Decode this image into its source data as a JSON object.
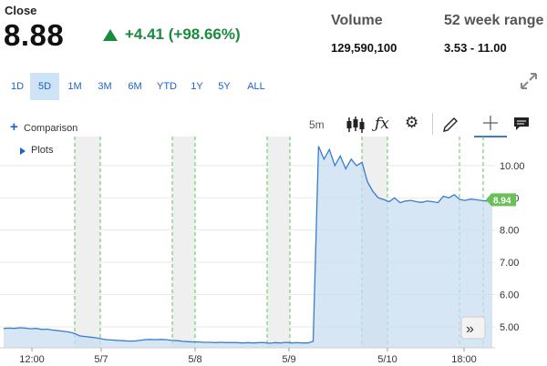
{
  "quote": {
    "close_label": "Close",
    "close_value": "8.88",
    "change": "+4.41 (+98.66%)",
    "change_color": "#1a8a3e",
    "volume_label": "Volume",
    "volume_value": "129,590,100",
    "range_label": "52 week range",
    "range_value": "3.53 - 11.00"
  },
  "range_tabs": [
    "1D",
    "5D",
    "1M",
    "3M",
    "6M",
    "YTD",
    "1Y",
    "5Y",
    "ALL"
  ],
  "active_range": "5D",
  "toolbar": {
    "comparison_label": "Comparison",
    "plots_label": "Plots",
    "interval": "5m",
    "icons": [
      "candlestick-icon",
      "fx-icon",
      "gear-icon",
      "pencil-icon",
      "crosshair-icon",
      "comment-icon",
      "expand-icon"
    ]
  },
  "chart_data": {
    "type": "area",
    "last_price_label": "8.94",
    "y_ticks": [
      "5.00",
      "6.00",
      "7.00",
      "8.00",
      "9.00",
      "10.00"
    ],
    "x_ticks": [
      "12:00",
      "5/7",
      "5/8",
      "5/9",
      "5/10",
      "18:00"
    ],
    "ylim": [
      4.35,
      10.9
    ],
    "grid": true,
    "accent_color": "#3a7dc9",
    "series": [
      {
        "values": [
          4.95,
          4.96,
          4.95,
          4.97,
          4.96,
          4.94,
          4.95,
          4.92,
          4.93,
          4.9,
          4.88,
          4.86,
          4.84,
          4.8,
          4.72,
          4.7,
          4.68,
          4.66,
          4.63,
          4.6,
          4.59,
          4.58,
          4.57,
          4.56,
          4.56,
          4.58,
          4.6,
          4.61,
          4.6,
          4.61,
          4.6,
          4.58,
          4.57,
          4.55,
          4.54,
          4.53,
          4.53,
          4.52,
          4.52,
          4.51,
          4.52,
          4.51,
          4.51,
          4.51,
          4.5,
          4.51,
          4.5,
          4.51,
          4.51,
          4.49,
          4.51,
          4.5,
          4.52,
          4.5,
          4.51,
          4.5,
          4.5,
          4.55,
          10.6,
          10.2,
          10.5,
          10.0,
          10.3,
          9.9,
          10.2,
          10.0,
          10.1,
          9.5,
          9.2,
          9.0,
          8.95,
          8.88,
          9.0,
          8.85,
          8.9,
          8.92,
          8.88,
          8.86,
          8.9,
          8.88,
          8.85,
          9.05,
          9.0,
          9.1,
          8.95,
          8.92,
          8.96,
          8.94,
          8.92,
          8.9,
          8.94
        ]
      }
    ]
  }
}
